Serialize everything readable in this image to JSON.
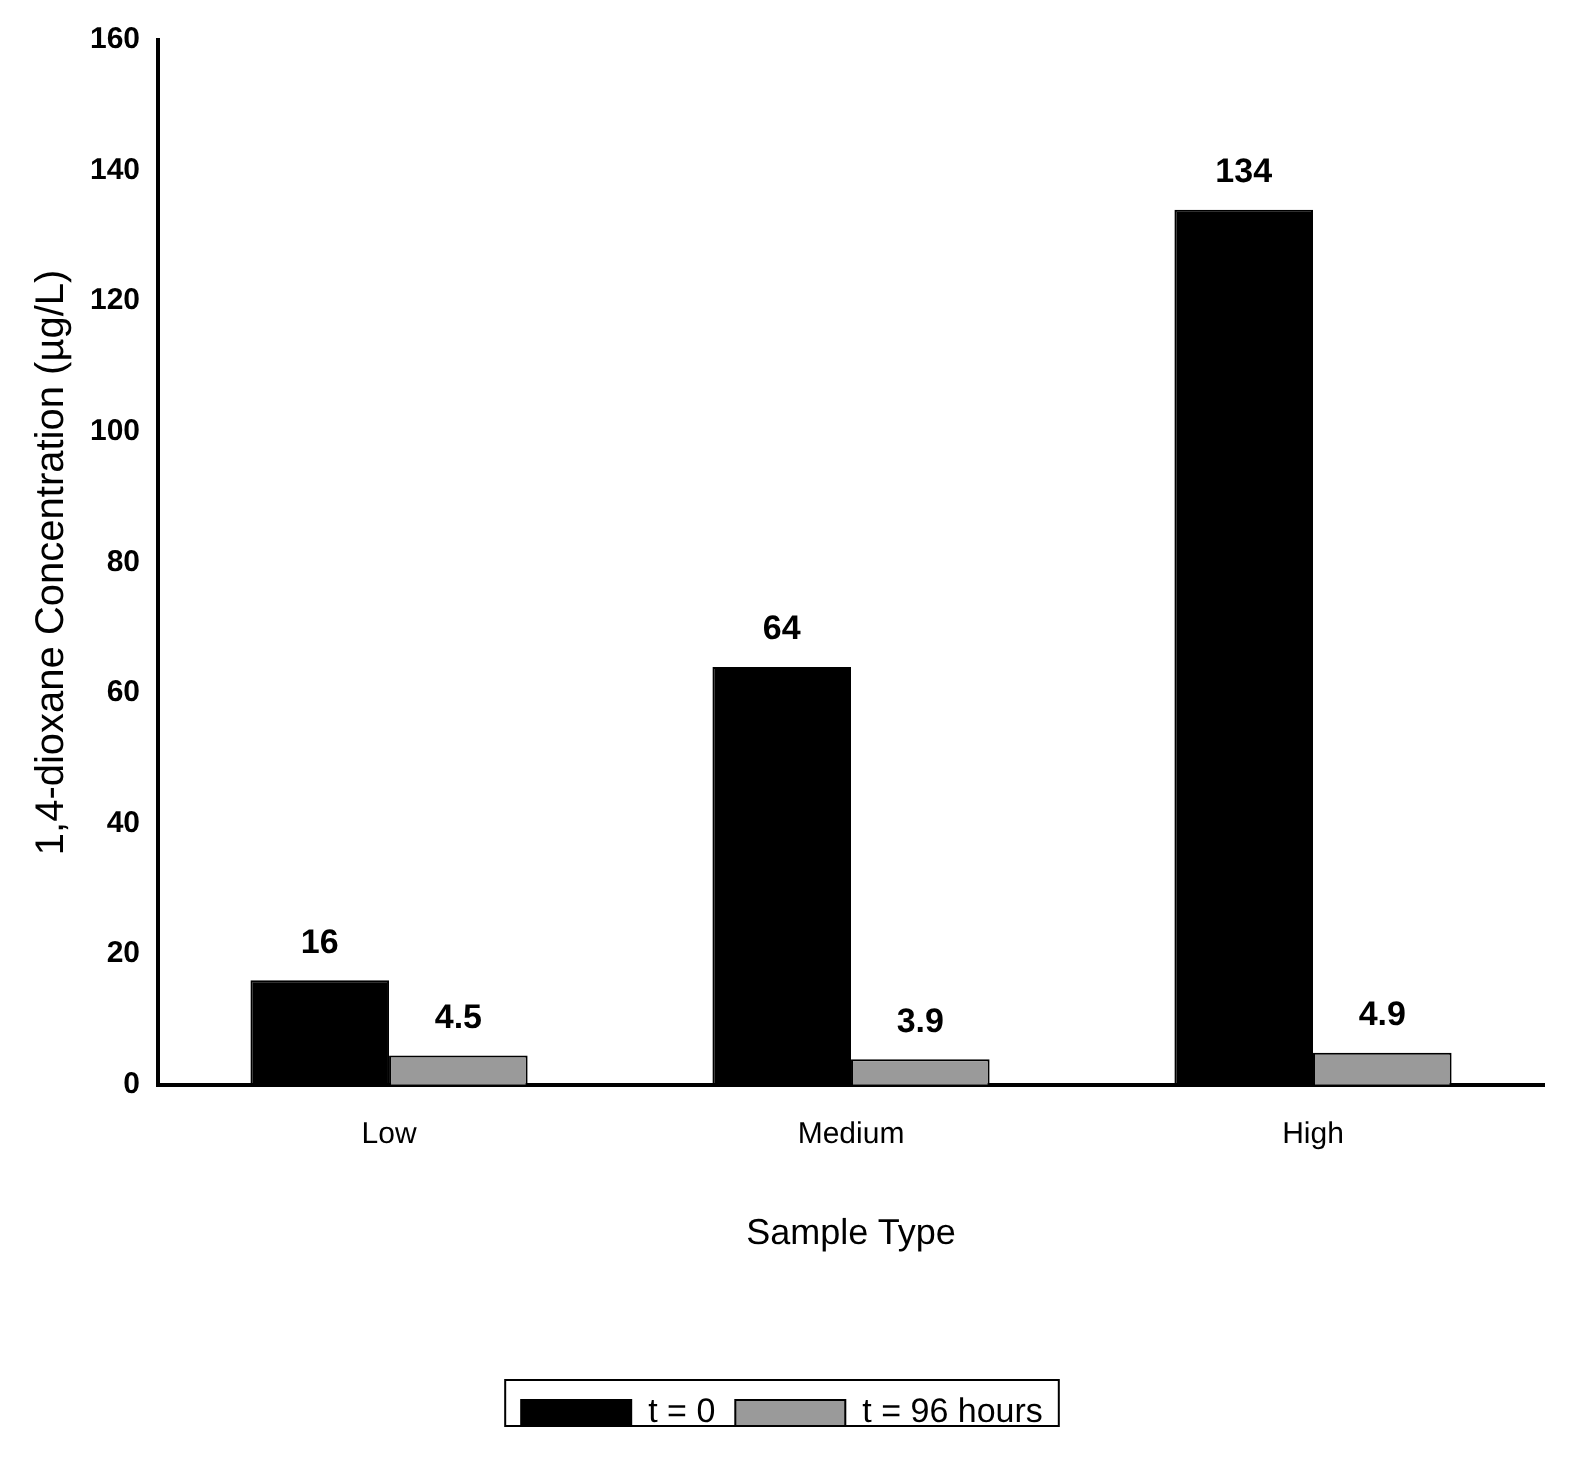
{
  "chart_data": {
    "type": "bar",
    "xlabel": "Sample Type",
    "ylabel": "1,4-dioxane Concentration (µg/L)",
    "categories": [
      "Low",
      "Medium",
      "High"
    ],
    "series": [
      {
        "name": "t = 0",
        "color": "#000000",
        "values": [
          16,
          64,
          134
        ]
      },
      {
        "name": "t = 96 hours",
        "color": "#9a9a9a",
        "values": [
          4.5,
          3.9,
          4.9
        ]
      }
    ],
    "ylim": [
      0,
      160
    ],
    "yticks": [
      0,
      20,
      40,
      60,
      80,
      100,
      120,
      140,
      160
    ],
    "grid": false,
    "legend": "bottom",
    "data_labels": true
  }
}
